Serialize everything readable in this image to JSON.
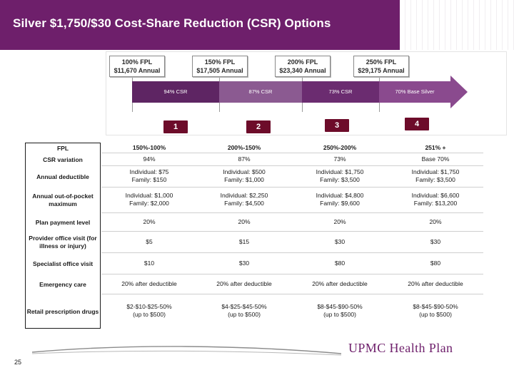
{
  "title": "Silver $1,750/$30 Cost-Share Reduction (CSR) Options",
  "diagram": {
    "fpl_boxes": [
      {
        "line1": "100% FPL",
        "line2": "$11,670 Annual"
      },
      {
        "line1": "150% FPL",
        "line2": "$17,505 Annual"
      },
      {
        "line1": "200% FPL",
        "line2": "$23,340 Annual"
      },
      {
        "line1": "250% FPL",
        "line2": "$29,175 Annual"
      }
    ],
    "segments": [
      "94% CSR",
      "87% CSR",
      "73% CSR",
      "70% Base Silver"
    ],
    "segment_colors": [
      "#5e2563",
      "#8b5a91",
      "#6b2c70",
      "#8a4a8e"
    ],
    "badges": [
      "1",
      "2",
      "3",
      "4"
    ]
  },
  "table": {
    "row_labels": [
      "FPL",
      "CSR variation",
      "Annual deductible",
      "Annual out-of-pocket maximum",
      "Plan payment level",
      "Provider office visit (for illness or injury)",
      "Specialist office visit",
      "Emergency care",
      "Retail prescription drugs"
    ],
    "columns": [
      {
        "fpl": "150%-100%",
        "csr": "94%",
        "deductible": [
          "Individual: $75",
          "Family: $150"
        ],
        "oop": [
          "Individual: $1,000",
          "Family: $2,000"
        ],
        "payment": "20%",
        "provider": "$5",
        "specialist": "$10",
        "emergency": "20% after deductible",
        "rx": [
          "$2-$10-$25-50%",
          "(up to $500)"
        ]
      },
      {
        "fpl": "200%-150%",
        "csr": "87%",
        "deductible": [
          "Individual: $500",
          "Family: $1,000"
        ],
        "oop": [
          "Individual: $2,250",
          "Family: $4,500"
        ],
        "payment": "20%",
        "provider": "$15",
        "specialist": "$30",
        "emergency": "20% after deductible",
        "rx": [
          "$4-$25-$45-50%",
          "(up to $500)"
        ]
      },
      {
        "fpl": "250%-200%",
        "csr": "73%",
        "deductible": [
          "Individual: $1,750",
          "Family: $3,500"
        ],
        "oop": [
          "Individual: $4,800",
          "Family: $9,600"
        ],
        "payment": "20%",
        "provider": "$30",
        "specialist": "$80",
        "emergency": "20% after deductible",
        "rx": [
          "$8-$45-$90-50%",
          "(up to $500)"
        ]
      },
      {
        "fpl": "251% +",
        "csr": "Base 70%",
        "deductible": [
          "Individual: $1,750",
          "Family: $3,500"
        ],
        "oop": [
          "Individual: $6,600",
          "Family: $13,200"
        ],
        "payment": "20%",
        "provider": "$30",
        "specialist": "$80",
        "emergency": "20% after deductible",
        "rx": [
          "$8-$45-$90-50%",
          "(up to $500)"
        ]
      }
    ]
  },
  "footer": {
    "page_number": "25",
    "logo": "UPMC Health Plan"
  },
  "colors": {
    "brand_purple": "#6e1f6b",
    "badge": "#6d0c2a"
  }
}
